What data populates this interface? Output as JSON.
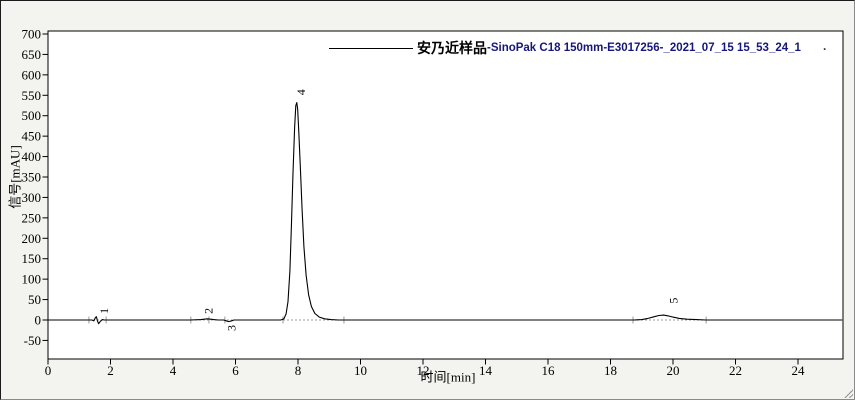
{
  "window": {
    "bg": "#f3f3f0",
    "plot_bg": "#ffffff",
    "frame_color": "#000000"
  },
  "chart_data": {
    "type": "line",
    "title": "",
    "xlabel": "时间[min]",
    "ylabel": "信号[mAU]",
    "xlim": [
      0,
      25.44
    ],
    "ylim": [
      -95,
      707
    ],
    "x_ticks": [
      0,
      2,
      4,
      6,
      8,
      10,
      12,
      14,
      16,
      18,
      20,
      22,
      24
    ],
    "y_ticks": [
      -50,
      0,
      50,
      100,
      150,
      200,
      250,
      300,
      350,
      400,
      450,
      500,
      550,
      600,
      650,
      700
    ],
    "grid": false,
    "legend": {
      "position": "top",
      "sample_zh": "安乃近样品",
      "method": "-SinoPak C18 150mm-E3017256-_2021_07_15 15_53_24_1",
      "trailing_dot": ".",
      "sample_color": "#000000",
      "method_color": "#16167e"
    },
    "series": [
      {
        "name": "安乃近样品-SinoPak C18 150mm-E3017256-_2021_07_15 15_53_24_1",
        "color": "#000000",
        "points": [
          [
            0,
            0
          ],
          [
            1.4,
            0
          ],
          [
            1.47,
            -2
          ],
          [
            1.52,
            6
          ],
          [
            1.55,
            8
          ],
          [
            1.58,
            -2
          ],
          [
            1.62,
            -9
          ],
          [
            1.68,
            -3
          ],
          [
            1.74,
            1
          ],
          [
            1.8,
            0
          ],
          [
            4.55,
            0
          ],
          [
            4.9,
            1
          ],
          [
            5.0,
            2
          ],
          [
            5.1,
            3
          ],
          [
            5.2,
            2
          ],
          [
            5.3,
            1
          ],
          [
            5.45,
            0
          ],
          [
            5.62,
            0
          ],
          [
            5.7,
            -2
          ],
          [
            5.78,
            -4
          ],
          [
            5.88,
            -2
          ],
          [
            5.95,
            0
          ],
          [
            7.45,
            0
          ],
          [
            7.55,
            3
          ],
          [
            7.62,
            15
          ],
          [
            7.68,
            45
          ],
          [
            7.74,
            120
          ],
          [
            7.79,
            230
          ],
          [
            7.84,
            360
          ],
          [
            7.89,
            470
          ],
          [
            7.93,
            525
          ],
          [
            7.96,
            532
          ],
          [
            7.99,
            515
          ],
          [
            8.03,
            455
          ],
          [
            8.08,
            365
          ],
          [
            8.13,
            270
          ],
          [
            8.19,
            180
          ],
          [
            8.26,
            110
          ],
          [
            8.34,
            62
          ],
          [
            8.43,
            33
          ],
          [
            8.54,
            16
          ],
          [
            8.68,
            7
          ],
          [
            8.85,
            3
          ],
          [
            9.05,
            1
          ],
          [
            9.3,
            0
          ],
          [
            18.75,
            0
          ],
          [
            19.0,
            1
          ],
          [
            19.2,
            4
          ],
          [
            19.4,
            8
          ],
          [
            19.55,
            11
          ],
          [
            19.7,
            12
          ],
          [
            19.85,
            10
          ],
          [
            20.0,
            7
          ],
          [
            20.2,
            4
          ],
          [
            20.45,
            2
          ],
          [
            20.75,
            1
          ],
          [
            21.05,
            0
          ],
          [
            25.4,
            0
          ]
        ]
      }
    ],
    "peak_labels": [
      {
        "label": "1",
        "t": 1.78,
        "v": 15
      },
      {
        "label": "2",
        "t": 5.12,
        "v": 15
      },
      {
        "label": "3",
        "t": 5.85,
        "v": -27
      },
      {
        "label": "4",
        "t": 8.08,
        "v": 550
      },
      {
        "label": "5",
        "t": 20.0,
        "v": 40
      }
    ],
    "integration": {
      "color": "#9b9b9b",
      "tick_times": [
        1.31,
        1.86,
        4.57,
        5.15,
        5.66,
        7.52,
        9.47,
        18.72,
        21.06
      ],
      "baselines": [
        [
          1.31,
          1.86
        ],
        [
          4.57,
          5.9
        ],
        [
          7.52,
          9.47
        ],
        [
          18.72,
          21.06
        ]
      ]
    }
  }
}
